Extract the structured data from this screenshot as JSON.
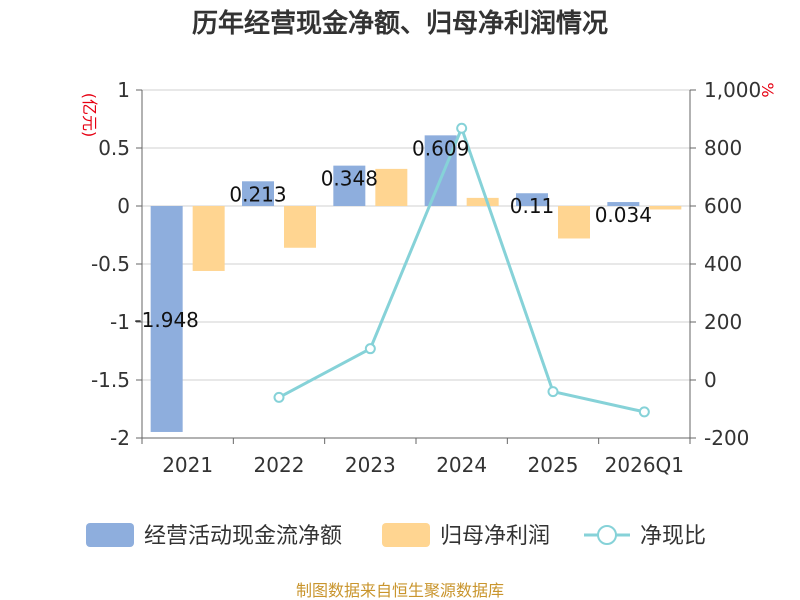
{
  "chart_data": {
    "type": "bar+line",
    "title": "历年经营现金净额、归母净利润情况",
    "categories": [
      "2021",
      "2022",
      "2023",
      "2024",
      "2025",
      "2026Q1"
    ],
    "left_axis": {
      "unit": "(亿元)",
      "ylim": [
        -2,
        1
      ],
      "ticks": [
        1,
        0.5,
        0,
        -0.5,
        -1,
        -1.5,
        -2
      ],
      "tick_labels": [
        "1",
        "0.5",
        "0",
        "-0.5",
        "-1",
        "-1.5",
        "-2"
      ]
    },
    "right_axis": {
      "unit": "%",
      "ylim": [
        -200,
        1000
      ],
      "ticks": [
        1000,
        800,
        600,
        400,
        200,
        0,
        -200
      ],
      "tick_labels": [
        "1,000",
        "800",
        "600",
        "400",
        "200",
        "0",
        "-200"
      ]
    },
    "series": [
      {
        "name": "经营活动现金流净额",
        "type": "bar",
        "axis": "left",
        "color": "#8eaedd",
        "values": [
          -1.948,
          0.213,
          0.348,
          0.609,
          0.11,
          0.034
        ],
        "labels": [
          "-1.948",
          "0.213",
          "0.348",
          "0.609",
          "0.11",
          "0.034"
        ]
      },
      {
        "name": "归母净利润",
        "type": "bar",
        "axis": "left",
        "color": "#ffd591",
        "values": [
          -0.56,
          -0.36,
          0.32,
          0.07,
          -0.28,
          -0.03
        ]
      },
      {
        "name": "净现比",
        "type": "line",
        "axis": "right",
        "color": "#86d2d8",
        "values": [
          null,
          -60,
          108,
          868,
          -40,
          -110
        ]
      }
    ],
    "source": "制图数据来自恒生聚源数据库"
  }
}
